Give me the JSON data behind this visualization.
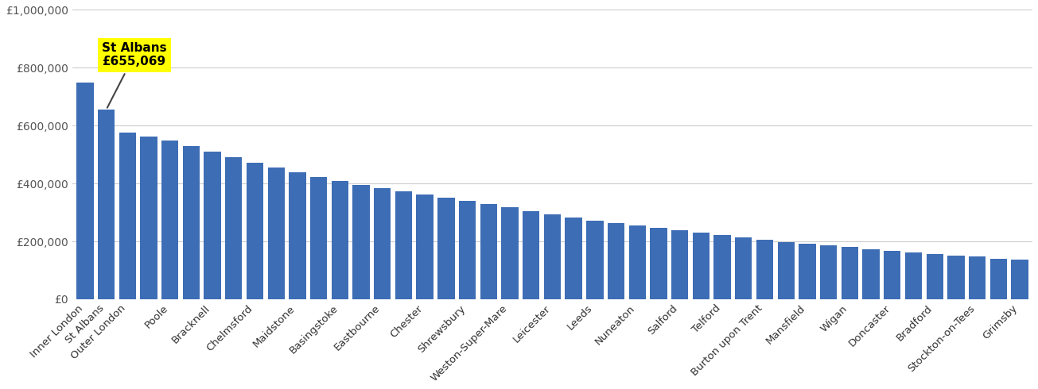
{
  "categories": [
    "Inner London",
    "St Albans",
    "Outer London",
    "",
    "Poole",
    "",
    "Bracknell",
    "",
    "Chelmsford",
    "",
    "Maidstone",
    "",
    "Basingstoke",
    "",
    "Eastbourne",
    "",
    "Chester",
    "",
    "Shrewsbury",
    "",
    "Weston-Super-Mare",
    "",
    "Leicester",
    "",
    "Leeds",
    "",
    "Nuneaton",
    "",
    "Salford",
    "",
    "Telford",
    "",
    "Burton upon Trent",
    "",
    "Mansfield",
    "",
    "Wigan",
    "",
    "Doncaster",
    "",
    "Bradford",
    "",
    "Stockton-on-Tees",
    "",
    "Grimsby"
  ],
  "values": [
    750000,
    655069,
    575000,
    562000,
    548000,
    530000,
    510000,
    490000,
    472000,
    455000,
    438000,
    422000,
    408000,
    395000,
    383000,
    373000,
    362000,
    350000,
    340000,
    330000,
    318000,
    305000,
    293000,
    283000,
    272000,
    263000,
    255000,
    247000,
    238000,
    230000,
    222000,
    214000,
    206000,
    198000,
    192000,
    186000,
    180000,
    174000,
    168000,
    163000,
    157000,
    152000,
    147000,
    141000,
    136000
  ],
  "bar_color": "#3d6db5",
  "annotation_label": "St Albans\n£655,069",
  "annotation_index": 1,
  "ylim": [
    0,
    1000000
  ],
  "yticks": [
    0,
    200000,
    400000,
    600000,
    800000,
    1000000
  ],
  "ytick_labels": [
    "£0",
    "£200,000",
    "£400,000",
    "£600,000",
    "£800,000",
    "£1,000,000"
  ],
  "background_color": "#ffffff",
  "grid_color": "#cccccc",
  "annotation_box_color": "#ffff00",
  "annotation_text_color": "#000000",
  "tick_label_fontsize": 9.5,
  "ytick_label_fontsize": 10
}
